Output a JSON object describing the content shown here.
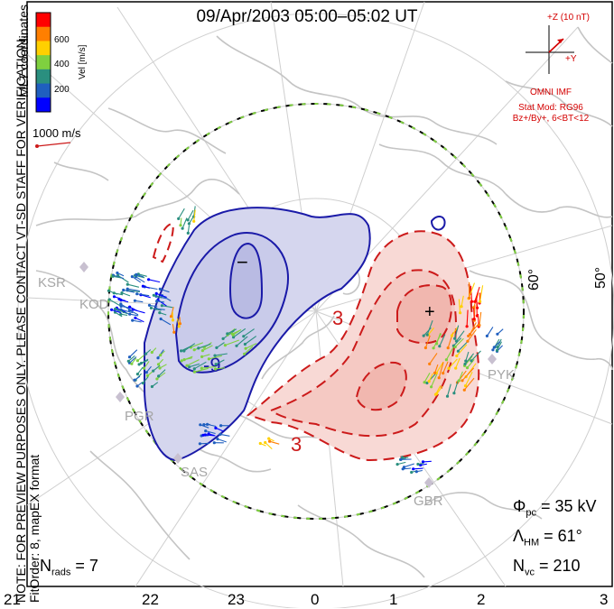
{
  "title": "09/Apr/2003 05:00–05:02 UT",
  "colorbar": {
    "unit_label": "Vel [m/s]",
    "ticks": [
      "600",
      "400",
      "200"
    ],
    "colors": [
      "#ff0000",
      "#ff7f00",
      "#ffd000",
      "#7fd03f",
      "#2a8f7f",
      "#1f5fbf",
      "#0000ff"
    ]
  },
  "vector_scale": "1000 m/s",
  "coordinate_note": "MLT coordinates",
  "preview_note": {
    "line1": "NOTE: FOR PREVIEW PURPOSES ONLY. PLEASE CONTACT VT-SD STAFF FOR VERIFICATION.",
    "line2": "FitOrder: 8,   mapEX format"
  },
  "imf": {
    "z_label": "+Z (10 nT)",
    "y_label": "+Y",
    "source": "OMNI IMF",
    "model_line1": "Stat Mod: RG96",
    "model_line2": "Bz+/By+, 6<BT<12"
  },
  "stats": {
    "phi_label": "Φ",
    "phi_sub": "pc",
    "phi_value": " = 35 kV",
    "lambda_label": "Λ",
    "lambda_sub": "HM",
    "lambda_value": " = 61°",
    "nvc_label": "N",
    "nvc_sub": "vc",
    "nvc_value": " = 210",
    "nrads_label": "N",
    "nrads_sub": "rads",
    "nrads_value": " = 7"
  },
  "latitude_labels": [
    "60°",
    "50°"
  ],
  "contour_labels": {
    "negative": "-9",
    "positive_a": "3",
    "positive_b": "3"
  },
  "extrema_markers": {
    "min": "−",
    "max": "+"
  },
  "radar_sites": [
    "KSR",
    "KOD",
    "PGR",
    "SAS",
    "GBR",
    "PYK"
  ],
  "mlt_axis": [
    "21",
    "22",
    "23",
    "0",
    "1",
    "2",
    "3"
  ],
  "colors": {
    "negative_fill": "#d5d6ee",
    "negative_line": "#1a1aa8",
    "positive_fill": "#f8d9d5",
    "positive_line": "#cc1a1a",
    "coast": "#c8c8c8",
    "grid": "#c8c8c8"
  }
}
